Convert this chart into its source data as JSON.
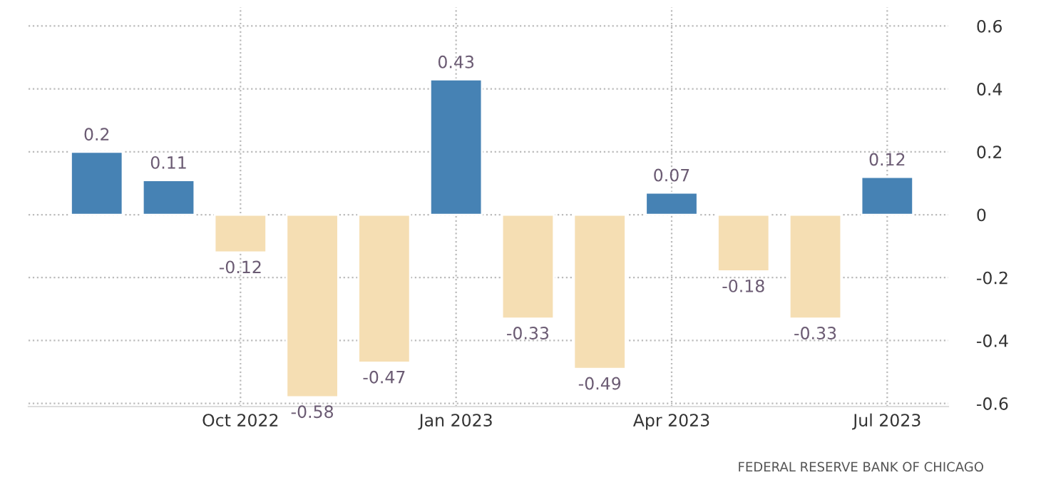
{
  "chart_data": {
    "type": "bar",
    "categories": [
      null,
      null,
      "Oct 2022",
      null,
      null,
      "Jan 2023",
      null,
      null,
      "Apr 2023",
      null,
      null,
      "Jul 2023"
    ],
    "values": [
      0.2,
      0.11,
      -0.12,
      -0.58,
      -0.47,
      0.43,
      -0.33,
      -0.49,
      0.07,
      -0.18,
      -0.33,
      0.12
    ],
    "colors": [
      "#4682b4",
      "#4682b4",
      "#f5deb3",
      "#f5deb3",
      "#f5deb3",
      "#4682b4",
      "#f5deb3",
      "#f5deb3",
      "#4682b4",
      "#f5deb3",
      "#f5deb3",
      "#4682b4"
    ],
    "ylim": [
      -0.61,
      0.66
    ],
    "yticks": [
      {
        "value": -0.6,
        "label": "-0.6"
      },
      {
        "value": -0.4,
        "label": "-0.4"
      },
      {
        "value": -0.2,
        "label": "-0.2"
      },
      0,
      0.2,
      0.4,
      0.6
    ],
    "grid": true,
    "data_labels": true,
    "annotations": [
      "FEDERAL RESERVE BANK OF CHICAGO"
    ]
  }
}
